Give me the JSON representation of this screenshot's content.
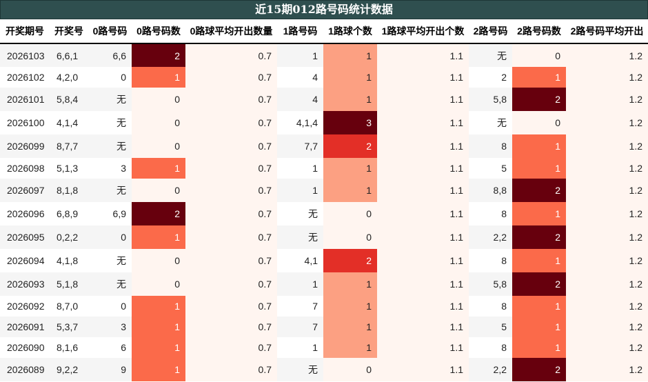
{
  "title": "近15期012路号码统计数据",
  "columns": [
    "开奖期号",
    "开奖号",
    "0路号码",
    "0路号码数",
    "0路球平均开出数量",
    "1路号码",
    "1路球个数",
    "1路球平均开出个数",
    "2路号码",
    "2路号码数",
    "2路号码平均开出"
  ],
  "heat_colors": {
    "0": "#fff5f0",
    "1_light": "#fca082",
    "1_mid": "#fb6a4a",
    "2_mid": "#e32f27",
    "2_dark": "#67000d",
    "3": "#67000d"
  },
  "rows": [
    {
      "period": "2026103",
      "draw": "6,6,1",
      "r0": "6,6",
      "r0n": "2",
      "r0avg": "0.7",
      "r1": "1",
      "r1n": "1",
      "r1avg": "1.1",
      "r2": "无",
      "r2n": "0",
      "r2avg": "1.2"
    },
    {
      "period": "2026102",
      "draw": "4,2,0",
      "r0": "0",
      "r0n": "1",
      "r0avg": "0.7",
      "r1": "4",
      "r1n": "1",
      "r1avg": "1.1",
      "r2": "2",
      "r2n": "1",
      "r2avg": "1.2"
    },
    {
      "period": "2026101",
      "draw": "5,8,4",
      "r0": "无",
      "r0n": "0",
      "r0avg": "0.7",
      "r1": "4",
      "r1n": "1",
      "r1avg": "1.1",
      "r2": "5,8",
      "r2n": "2",
      "r2avg": "1.2"
    },
    {
      "period": "2026100",
      "draw": "4,1,4",
      "r0": "无",
      "r0n": "0",
      "r0avg": "0.7",
      "r1": "4,1,4",
      "r1n": "3",
      "r1avg": "1.1",
      "r2": "无",
      "r2n": "0",
      "r2avg": "1.2"
    },
    {
      "period": "2026099",
      "draw": "8,7,7",
      "r0": "无",
      "r0n": "0",
      "r0avg": "0.7",
      "r1": "7,7",
      "r1n": "2",
      "r1avg": "1.1",
      "r2": "8",
      "r2n": "1",
      "r2avg": "1.2"
    },
    {
      "period": "2026098",
      "draw": "5,1,3",
      "r0": "3",
      "r0n": "1",
      "r0avg": "0.7",
      "r1": "1",
      "r1n": "1",
      "r1avg": "1.1",
      "r2": "5",
      "r2n": "1",
      "r2avg": "1.2"
    },
    {
      "period": "2026097",
      "draw": "8,1,8",
      "r0": "无",
      "r0n": "0",
      "r0avg": "0.7",
      "r1": "1",
      "r1n": "1",
      "r1avg": "1.1",
      "r2": "8,8",
      "r2n": "2",
      "r2avg": "1.2"
    },
    {
      "period": "2026096",
      "draw": "6,8,9",
      "r0": "6,9",
      "r0n": "2",
      "r0avg": "0.7",
      "r1": "无",
      "r1n": "0",
      "r1avg": "1.1",
      "r2": "8",
      "r2n": "1",
      "r2avg": "1.2"
    },
    {
      "period": "2026095",
      "draw": "0,2,2",
      "r0": "0",
      "r0n": "1",
      "r0avg": "0.7",
      "r1": "无",
      "r1n": "0",
      "r1avg": "1.1",
      "r2": "2,2",
      "r2n": "2",
      "r2avg": "1.2"
    },
    {
      "period": "2026094",
      "draw": "4,1,8",
      "r0": "无",
      "r0n": "0",
      "r0avg": "0.7",
      "r1": "4,1",
      "r1n": "2",
      "r1avg": "1.1",
      "r2": "8",
      "r2n": "1",
      "r2avg": "1.2"
    },
    {
      "period": "2026093",
      "draw": "5,1,8",
      "r0": "无",
      "r0n": "0",
      "r0avg": "0.7",
      "r1": "1",
      "r1n": "1",
      "r1avg": "1.1",
      "r2": "5,8",
      "r2n": "2",
      "r2avg": "1.2"
    },
    {
      "period": "2026092",
      "draw": "8,7,0",
      "r0": "0",
      "r0n": "1",
      "r0avg": "0.7",
      "r1": "7",
      "r1n": "1",
      "r1avg": "1.1",
      "r2": "8",
      "r2n": "1",
      "r2avg": "1.2"
    },
    {
      "period": "2026091",
      "draw": "5,3,7",
      "r0": "3",
      "r0n": "1",
      "r0avg": "0.7",
      "r1": "7",
      "r1n": "1",
      "r1avg": "1.1",
      "r2": "5",
      "r2n": "1",
      "r2avg": "1.2"
    },
    {
      "period": "2026090",
      "draw": "8,1,6",
      "r0": "6",
      "r0n": "1",
      "r0avg": "0.7",
      "r1": "1",
      "r1n": "1",
      "r1avg": "1.1",
      "r2": "8",
      "r2n": "1",
      "r2avg": "1.2"
    },
    {
      "period": "2026089",
      "draw": "9,2,2",
      "r0": "9",
      "r0n": "1",
      "r0avg": "0.7",
      "r1": "无",
      "r1n": "0",
      "r1avg": "1.1",
      "r2": "2,2",
      "r2n": "2",
      "r2avg": "1.2"
    }
  ]
}
